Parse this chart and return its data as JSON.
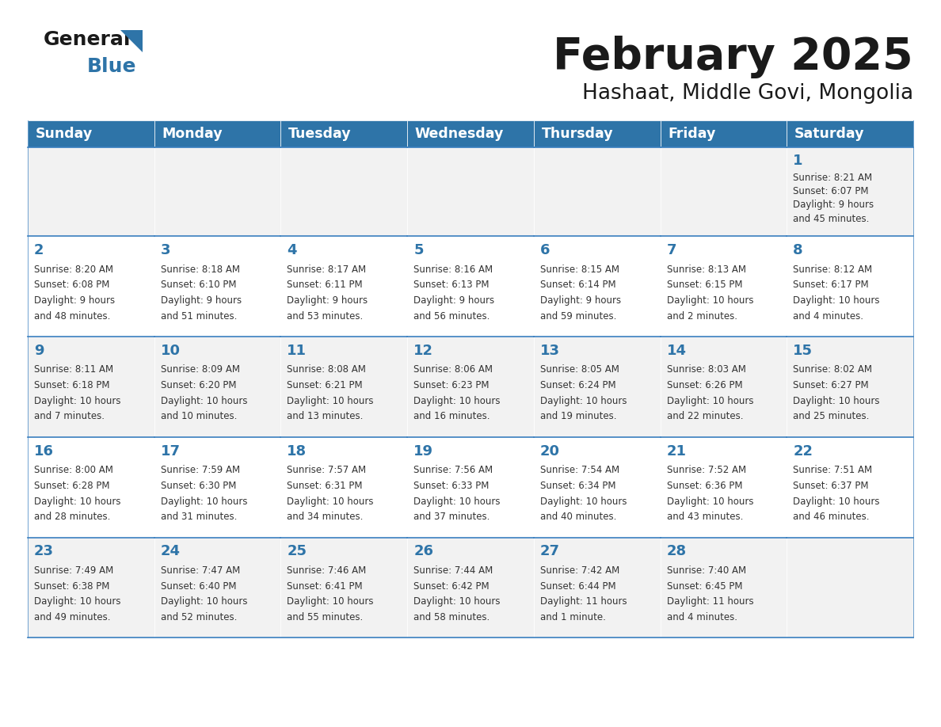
{
  "title": "February 2025",
  "subtitle": "Hashaat, Middle Govi, Mongolia",
  "header_bg": "#2E74A8",
  "header_text_color": "#FFFFFF",
  "cell_bg_odd": "#F2F2F2",
  "cell_bg_even": "#FFFFFF",
  "cell_text_color": "#333333",
  "day_number_color": "#2E74A8",
  "border_color": "#3A7FBF",
  "days_of_week": [
    "Sunday",
    "Monday",
    "Tuesday",
    "Wednesday",
    "Thursday",
    "Friday",
    "Saturday"
  ],
  "calendar_data": [
    [
      null,
      null,
      null,
      null,
      null,
      null,
      {
        "day": 1,
        "sunrise": "8:21 AM",
        "sunset": "6:07 PM",
        "daylight": "9 hours and 45 minutes."
      }
    ],
    [
      {
        "day": 2,
        "sunrise": "8:20 AM",
        "sunset": "6:08 PM",
        "daylight": "9 hours and 48 minutes."
      },
      {
        "day": 3,
        "sunrise": "8:18 AM",
        "sunset": "6:10 PM",
        "daylight": "9 hours and 51 minutes."
      },
      {
        "day": 4,
        "sunrise": "8:17 AM",
        "sunset": "6:11 PM",
        "daylight": "9 hours and 53 minutes."
      },
      {
        "day": 5,
        "sunrise": "8:16 AM",
        "sunset": "6:13 PM",
        "daylight": "9 hours and 56 minutes."
      },
      {
        "day": 6,
        "sunrise": "8:15 AM",
        "sunset": "6:14 PM",
        "daylight": "9 hours and 59 minutes."
      },
      {
        "day": 7,
        "sunrise": "8:13 AM",
        "sunset": "6:15 PM",
        "daylight": "10 hours and 2 minutes."
      },
      {
        "day": 8,
        "sunrise": "8:12 AM",
        "sunset": "6:17 PM",
        "daylight": "10 hours and 4 minutes."
      }
    ],
    [
      {
        "day": 9,
        "sunrise": "8:11 AM",
        "sunset": "6:18 PM",
        "daylight": "10 hours and 7 minutes."
      },
      {
        "day": 10,
        "sunrise": "8:09 AM",
        "sunset": "6:20 PM",
        "daylight": "10 hours and 10 minutes."
      },
      {
        "day": 11,
        "sunrise": "8:08 AM",
        "sunset": "6:21 PM",
        "daylight": "10 hours and 13 minutes."
      },
      {
        "day": 12,
        "sunrise": "8:06 AM",
        "sunset": "6:23 PM",
        "daylight": "10 hours and 16 minutes."
      },
      {
        "day": 13,
        "sunrise": "8:05 AM",
        "sunset": "6:24 PM",
        "daylight": "10 hours and 19 minutes."
      },
      {
        "day": 14,
        "sunrise": "8:03 AM",
        "sunset": "6:26 PM",
        "daylight": "10 hours and 22 minutes."
      },
      {
        "day": 15,
        "sunrise": "8:02 AM",
        "sunset": "6:27 PM",
        "daylight": "10 hours and 25 minutes."
      }
    ],
    [
      {
        "day": 16,
        "sunrise": "8:00 AM",
        "sunset": "6:28 PM",
        "daylight": "10 hours and 28 minutes."
      },
      {
        "day": 17,
        "sunrise": "7:59 AM",
        "sunset": "6:30 PM",
        "daylight": "10 hours and 31 minutes."
      },
      {
        "day": 18,
        "sunrise": "7:57 AM",
        "sunset": "6:31 PM",
        "daylight": "10 hours and 34 minutes."
      },
      {
        "day": 19,
        "sunrise": "7:56 AM",
        "sunset": "6:33 PM",
        "daylight": "10 hours and 37 minutes."
      },
      {
        "day": 20,
        "sunrise": "7:54 AM",
        "sunset": "6:34 PM",
        "daylight": "10 hours and 40 minutes."
      },
      {
        "day": 21,
        "sunrise": "7:52 AM",
        "sunset": "6:36 PM",
        "daylight": "10 hours and 43 minutes."
      },
      {
        "day": 22,
        "sunrise": "7:51 AM",
        "sunset": "6:37 PM",
        "daylight": "10 hours and 46 minutes."
      }
    ],
    [
      {
        "day": 23,
        "sunrise": "7:49 AM",
        "sunset": "6:38 PM",
        "daylight": "10 hours and 49 minutes."
      },
      {
        "day": 24,
        "sunrise": "7:47 AM",
        "sunset": "6:40 PM",
        "daylight": "10 hours and 52 minutes."
      },
      {
        "day": 25,
        "sunrise": "7:46 AM",
        "sunset": "6:41 PM",
        "daylight": "10 hours and 55 minutes."
      },
      {
        "day": 26,
        "sunrise": "7:44 AM",
        "sunset": "6:42 PM",
        "daylight": "10 hours and 58 minutes."
      },
      {
        "day": 27,
        "sunrise": "7:42 AM",
        "sunset": "6:44 PM",
        "daylight": "11 hours and 1 minute."
      },
      {
        "day": 28,
        "sunrise": "7:40 AM",
        "sunset": "6:45 PM",
        "daylight": "11 hours and 4 minutes."
      },
      null
    ]
  ],
  "figsize": [
    11.88,
    9.18
  ],
  "dpi": 100
}
